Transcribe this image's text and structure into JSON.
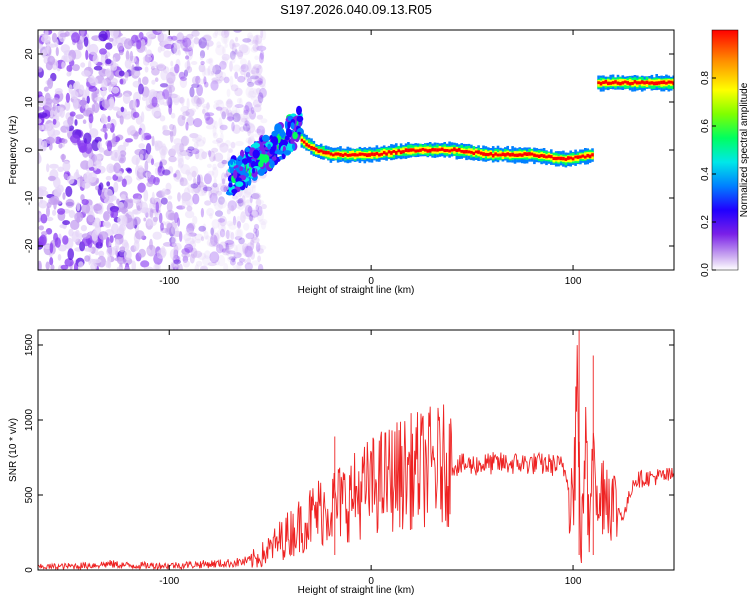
{
  "title": "S197.2026.040.09.13.R05",
  "chart_data": [
    {
      "type": "heatmap",
      "xlabel": "Height of straight line (km)",
      "ylabel": "Frequency (Hz)",
      "xlim": [
        -165,
        150
      ],
      "ylim": [
        -25,
        25
      ],
      "xticks": [
        -100,
        0,
        100
      ],
      "yticks": [
        -20,
        -10,
        0,
        10,
        20
      ],
      "colorbar": {
        "label": "Normalized spectral amplitude",
        "range": [
          0,
          1
        ],
        "ticks": [
          0.0,
          0.2,
          0.4,
          0.6,
          0.8
        ],
        "colors": [
          "#ffffff",
          "#dcc8f5",
          "#8a3cf0",
          "#5a10e0",
          "#0000ff",
          "#00aaff",
          "#00ffcc",
          "#00ff00",
          "#aaff00",
          "#ffff00",
          "#ff8800",
          "#ff0000"
        ]
      },
      "features": [
        {
          "name": "noise",
          "x_range": [
            -165,
            -65
          ],
          "y_range": [
            -25,
            25
          ],
          "amplitude": 0.2
        },
        {
          "name": "rising-streak",
          "x": [
            -70,
            -50,
            -35
          ],
          "y": [
            -6,
            0,
            5
          ],
          "amplitude": 0.35
        },
        {
          "name": "carrier",
          "x": [
            -35,
            -28,
            -20,
            0,
            20,
            40,
            60,
            80,
            95,
            110
          ],
          "y": [
            2,
            0,
            -1,
            -1,
            0,
            0,
            -1,
            -1,
            -2,
            -1
          ],
          "amplitude": 0.9
        },
        {
          "name": "shifted-carrier",
          "x": [
            112,
            150
          ],
          "y": [
            14,
            14
          ],
          "amplitude": 0.9
        }
      ]
    },
    {
      "type": "line",
      "xlabel": "Height of straight line (km)",
      "ylabel": "SNR (10 * v/v)",
      "xlim": [
        -165,
        150
      ],
      "ylim": [
        0,
        1600
      ],
      "xticks": [
        -100,
        0,
        100
      ],
      "yticks": [
        0,
        500,
        1000,
        1500
      ],
      "color": "#ee2222",
      "series": [
        {
          "x": [
            -165,
            -150,
            -140,
            -130,
            -120,
            -110,
            -100,
            -90,
            -80,
            -70,
            -60,
            -55,
            -50,
            -45,
            -40,
            -35,
            -30,
            -25,
            -20,
            -15,
            -10,
            -5,
            0,
            10,
            20,
            30,
            40,
            50,
            60,
            70,
            80,
            90,
            95,
            100,
            102,
            104,
            106,
            108,
            110,
            112,
            115,
            120,
            125,
            130,
            140,
            150
          ],
          "y": [
            20,
            25,
            30,
            40,
            30,
            30,
            30,
            35,
            40,
            45,
            60,
            90,
            140,
            200,
            250,
            300,
            350,
            400,
            430,
            450,
            480,
            520,
            560,
            620,
            660,
            690,
            700,
            700,
            710,
            710,
            710,
            700,
            690,
            500,
            1200,
            100,
            900,
            200,
            1350,
            300,
            600,
            450,
            350,
            600,
            620,
            630
          ]
        }
      ],
      "annotations": [
        {
          "x": -18,
          "y": 890
        },
        {
          "x": 103,
          "y": 1600
        },
        {
          "x": 110,
          "y": 1430
        }
      ]
    }
  ]
}
